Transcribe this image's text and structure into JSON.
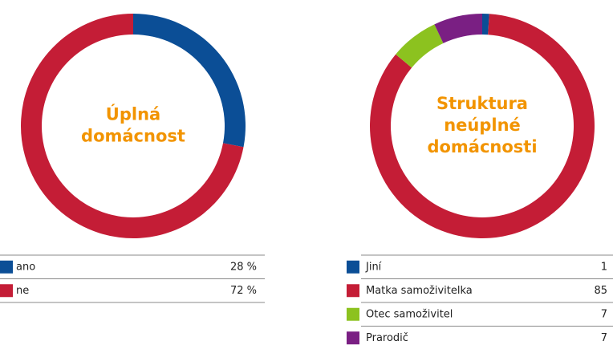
{
  "chart_data": [
    {
      "type": "donut",
      "title": [
        "Úplná",
        "domácnost"
      ],
      "categories": [
        "ano",
        "ne"
      ],
      "values": [
        28,
        72
      ],
      "value_labels": [
        "28 %",
        "72 %"
      ],
      "colors": [
        "#0b4e96",
        "#c41d36"
      ]
    },
    {
      "type": "donut",
      "title": [
        "Struktura",
        "neúplné",
        "domácnosti"
      ],
      "categories": [
        "Jiní",
        "Matka samoživitelka",
        "Otec samoživitel",
        "Prarodič"
      ],
      "values": [
        1,
        85,
        7,
        7
      ],
      "colors": [
        "#0b4e96",
        "#c41d36",
        "#8cc21f",
        "#7a1f83"
      ]
    }
  ]
}
